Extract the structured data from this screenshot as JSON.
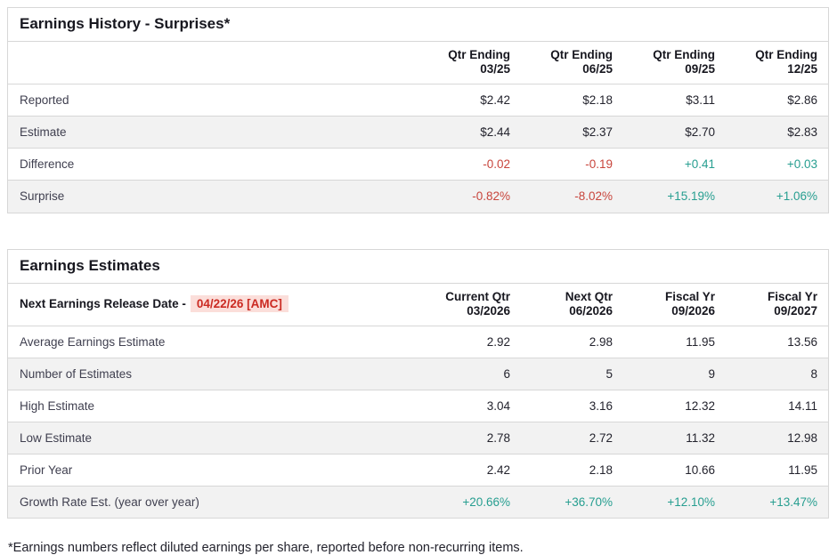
{
  "colors": {
    "positive": "#269e90",
    "negative": "#c8453c",
    "release_date_text": "#cb2a22",
    "release_date_bg": "#fbdeda",
    "row_alt_bg": "#f2f2f2",
    "border": "#d7d7d7"
  },
  "surprises_table": {
    "title": "Earnings History - Surprises*",
    "columns": [
      {
        "line1": "Qtr Ending",
        "line2": "03/25"
      },
      {
        "line1": "Qtr Ending",
        "line2": "06/25"
      },
      {
        "line1": "Qtr Ending",
        "line2": "09/25"
      },
      {
        "line1": "Qtr Ending",
        "line2": "12/25"
      }
    ],
    "rows": [
      {
        "label": "Reported",
        "values": [
          "$2.42",
          "$2.18",
          "$3.11",
          "$2.86"
        ]
      },
      {
        "label": "Estimate",
        "values": [
          "$2.44",
          "$2.37",
          "$2.70",
          "$2.83"
        ]
      },
      {
        "label": "Difference",
        "values": [
          "-0.02",
          "-0.19",
          "+0.41",
          "+0.03"
        ],
        "tones": [
          "neg",
          "neg",
          "pos",
          "pos"
        ]
      },
      {
        "label": "Surprise",
        "values": [
          "-0.82%",
          "-8.02%",
          "+15.19%",
          "+1.06%"
        ],
        "tones": [
          "neg",
          "neg",
          "pos",
          "pos"
        ]
      }
    ]
  },
  "estimates_table": {
    "title": "Earnings Estimates",
    "release_label": "Next Earnings Release Date -",
    "release_date": "04/22/26 [AMC]",
    "columns": [
      {
        "line1": "Current Qtr",
        "line2": "03/2026"
      },
      {
        "line1": "Next Qtr",
        "line2": "06/2026"
      },
      {
        "line1": "Fiscal Yr",
        "line2": "09/2026"
      },
      {
        "line1": "Fiscal Yr",
        "line2": "09/2027"
      }
    ],
    "rows": [
      {
        "label": "Average Earnings Estimate",
        "values": [
          "2.92",
          "2.98",
          "11.95",
          "13.56"
        ]
      },
      {
        "label": "Number of Estimates",
        "values": [
          "6",
          "5",
          "9",
          "8"
        ]
      },
      {
        "label": "High Estimate",
        "values": [
          "3.04",
          "3.16",
          "12.32",
          "14.11"
        ]
      },
      {
        "label": "Low Estimate",
        "values": [
          "2.78",
          "2.72",
          "11.32",
          "12.98"
        ]
      },
      {
        "label": "Prior Year",
        "values": [
          "2.42",
          "2.18",
          "10.66",
          "11.95"
        ]
      },
      {
        "label": "Growth Rate Est. (year over year)",
        "values": [
          "+20.66%",
          "+36.70%",
          "+12.10%",
          "+13.47%"
        ],
        "tones": [
          "pos",
          "pos",
          "pos",
          "pos"
        ]
      }
    ]
  },
  "footnote": "*Earnings numbers reflect diluted earnings per share, reported before non-recurring items."
}
